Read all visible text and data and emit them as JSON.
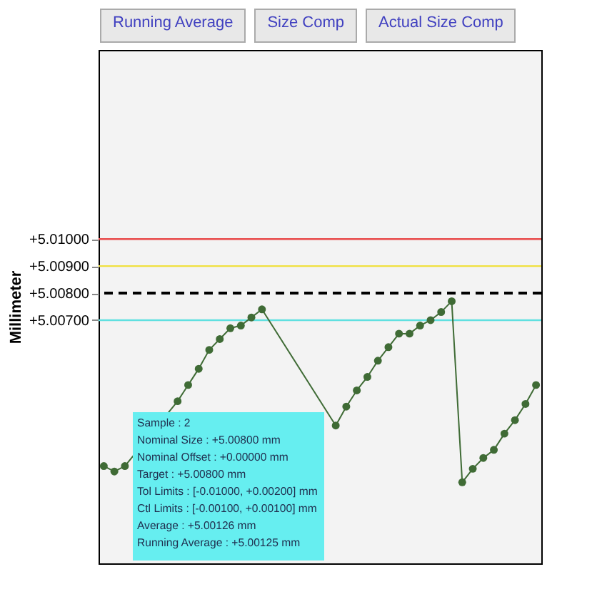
{
  "chart_data": {
    "type": "line",
    "ylabel": "Millimeter",
    "categories": [
      null,
      null,
      null,
      null,
      null,
      null,
      null,
      null,
      null,
      null,
      null,
      null,
      null,
      null,
      null,
      null,
      null,
      null,
      null,
      null,
      null,
      null,
      null,
      null,
      null,
      null,
      null,
      null,
      null,
      null,
      null,
      null,
      null,
      null,
      null,
      null,
      null,
      null,
      null,
      null,
      null,
      null
    ],
    "series": [
      {
        "color": "#3f6b35",
        "values": [
          5.0016,
          5.0014,
          5.0016,
          null,
          null,
          null,
          null,
          5.004,
          5.0046,
          5.0052,
          5.0059,
          5.0063,
          5.0067,
          5.0068,
          5.0071,
          5.0074,
          null,
          null,
          null,
          null,
          null,
          null,
          5.0031,
          5.0038,
          5.0044,
          5.0049,
          5.0055,
          5.006,
          5.0065,
          5.0065,
          5.0068,
          5.007,
          5.0073,
          5.0077,
          5.001,
          5.0015,
          5.0019,
          5.0022,
          5.0028,
          5.0033,
          5.0039,
          5.0046
        ]
      }
    ],
    "ylim": [
      4.998,
      5.017
    ],
    "yticks": [
      {
        "value": 5.007,
        "label": "+5.00700"
      },
      {
        "value": 5.008,
        "label": "+5.00800"
      },
      {
        "value": 5.009,
        "label": "+5.00900"
      },
      {
        "value": 5.01,
        "label": "+5.01000"
      }
    ],
    "tick_labels": "y",
    "marker": "circle",
    "ref_lines": [
      {
        "axis": "y",
        "value": 5.01,
        "color": "#e84a4a"
      },
      {
        "axis": "y",
        "value": 5.009,
        "color": "#f0e040"
      },
      {
        "axis": "y",
        "value": 5.008,
        "color": "#000000",
        "line_style": "dashed"
      },
      {
        "axis": "y",
        "value": 5.007,
        "color": "#60e0e0"
      }
    ],
    "annotations": [
      "Running Average",
      "Size Comp",
      "Actual Size Comp",
      "Sample : 2\nNominal Size : +5.00800 mm\nNominal Offset : +0.00000 mm\nTarget : +5.00800 mm\nTol Limits : [-0.01000, +0.00200] mm\nCtl Limits : [-0.00100, +0.00100] mm\nAverage : +5.00126 mm\nRunning Average : +5.00125 mm"
    ]
  }
}
